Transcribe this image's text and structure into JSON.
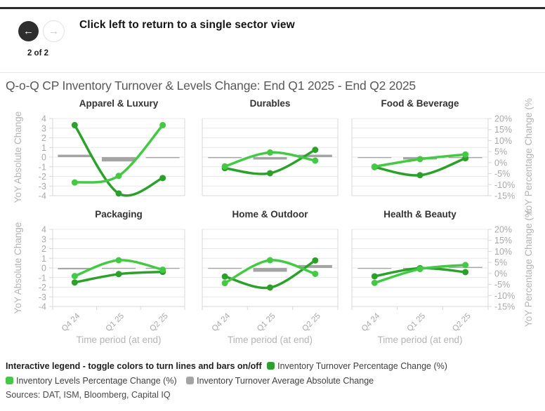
{
  "header": {
    "instruction": "Click left to return to a single sector view",
    "page_indicator": "2 of 2",
    "back_icon": "left-arrow",
    "forward_icon": "right-arrow"
  },
  "title": "Q-o-Q CP Inventory Turnover & Levels Change: End Q1 2025 - End Q2 2025",
  "axes": {
    "left_title": "YoY Absolute Change",
    "right_title": "YoY Percentage Change (%",
    "x_title": "Time period (at end)",
    "categories": [
      "Q4 24",
      "Q1 25",
      "Q2 25"
    ],
    "left_ticks": [
      4,
      3,
      2,
      1,
      0,
      -1,
      -2,
      -3,
      -4
    ],
    "right_ticks": [
      "20%",
      "15%",
      "10%",
      "5%",
      "0%",
      "-5%",
      "-10%",
      "-15%"
    ],
    "left_range": [
      -4,
      4
    ],
    "right_range": [
      -15,
      20
    ]
  },
  "colors": {
    "turnover": "#2ba12b",
    "levels": "#43c943",
    "bars": "#a4a4a4",
    "grid": "#e8e8e8",
    "axis_line": "#d9d9d9",
    "tick_text": "#a9a9a9",
    "axis_title_text": "#b4b4b4"
  },
  "chart_data": [
    {
      "type": "line+bar",
      "title": "Apparel & Luxury",
      "categories": [
        "Q4 24",
        "Q1 25",
        "Q2 25"
      ],
      "series": [
        {
          "name": "Inventory Turnover Percentage Change (%)",
          "kind": "line",
          "axis": "right",
          "values": [
            17,
            -14,
            -7
          ]
        },
        {
          "name": "Inventory Levels Percentage Change (%)",
          "kind": "line",
          "axis": "right",
          "values": [
            -9,
            -6,
            17
          ]
        },
        {
          "name": "Inventory Turnover Average Absolute Change",
          "kind": "bar",
          "axis": "left",
          "values": [
            0.25,
            -0.45,
            -0.1
          ]
        }
      ]
    },
    {
      "type": "line+bar",
      "title": "Durables",
      "categories": [
        "Q4 24",
        "Q1 25",
        "Q2 25"
      ],
      "series": [
        {
          "name": "Inventory Turnover Percentage Change (%)",
          "kind": "line",
          "axis": "right",
          "values": [
            -2.5,
            -4.8,
            5.8
          ]
        },
        {
          "name": "Inventory Levels Percentage Change (%)",
          "kind": "line",
          "axis": "right",
          "values": [
            -1.7,
            4.6,
            0.9
          ]
        },
        {
          "name": "Inventory Turnover Average Absolute Change",
          "kind": "bar",
          "axis": "left",
          "values": [
            -0.1,
            -0.25,
            0.25
          ]
        }
      ]
    },
    {
      "type": "line+bar",
      "title": "Food & Beverage",
      "categories": [
        "Q4 24",
        "Q1 25",
        "Q2 25"
      ],
      "series": [
        {
          "name": "Inventory Turnover Percentage Change (%)",
          "kind": "line",
          "axis": "right",
          "values": [
            -2,
            -5.7,
            2
          ]
        },
        {
          "name": "Inventory Levels Percentage Change (%)",
          "kind": "line",
          "axis": "right",
          "values": [
            -1.8,
            1.6,
            3.7
          ]
        },
        {
          "name": "Inventory Turnover Average Absolute Change",
          "kind": "bar",
          "axis": "left",
          "values": [
            -0.05,
            -0.25,
            -0.1
          ]
        }
      ]
    },
    {
      "type": "line+bar",
      "title": "Packaging",
      "categories": [
        "Q4 24",
        "Q1 25",
        "Q2 25"
      ],
      "series": [
        {
          "name": "Inventory Turnover Percentage Change (%)",
          "kind": "line",
          "axis": "right",
          "values": [
            -4.1,
            -0.3,
            0.7
          ]
        },
        {
          "name": "Inventory Levels Percentage Change (%)",
          "kind": "line",
          "axis": "right",
          "values": [
            -1.2,
            6.0,
            1.7
          ]
        },
        {
          "name": "Inventory Turnover Average Absolute Change",
          "kind": "bar",
          "axis": "left",
          "values": [
            -0.15,
            -0.03,
            -0.03
          ]
        }
      ]
    },
    {
      "type": "line+bar",
      "title": "Home & Outdoor",
      "categories": [
        "Q4 24",
        "Q1 25",
        "Q2 25"
      ],
      "series": [
        {
          "name": "Inventory Turnover Percentage Change (%)",
          "kind": "line",
          "axis": "right",
          "values": [
            -1.4,
            -6.4,
            5.9
          ]
        },
        {
          "name": "Inventory Levels Percentage Change (%)",
          "kind": "line",
          "axis": "right",
          "values": [
            -4.4,
            6.0,
            -0.2
          ]
        },
        {
          "name": "Inventory Turnover Average Absolute Change",
          "kind": "bar",
          "axis": "left",
          "values": [
            -0.03,
            -0.4,
            0.3
          ]
        }
      ]
    },
    {
      "type": "line+bar",
      "title": "Health & Beauty",
      "categories": [
        "Q4 24",
        "Q1 25",
        "Q2 25"
      ],
      "series": [
        {
          "name": "Inventory Turnover Percentage Change (%)",
          "kind": "line",
          "axis": "right",
          "values": [
            -1.3,
            2.4,
            0.6
          ]
        },
        {
          "name": "Inventory Levels Percentage Change (%)",
          "kind": "line",
          "axis": "right",
          "values": [
            -4.3,
            2.0,
            3.8
          ]
        },
        {
          "name": "Inventory Turnover Average Absolute Change",
          "kind": "bar",
          "axis": "left",
          "values": [
            -0.03,
            -0.05,
            0.1
          ]
        }
      ]
    }
  ],
  "legend": {
    "intro": "Interactive legend - toggle colors to turn lines and bars on/off",
    "items": [
      {
        "label": "Inventory Turnover Percentage Change (%)",
        "color": "#2ba12b"
      },
      {
        "label": "Inventory Levels Percentage Change (%)",
        "color": "#43c943"
      },
      {
        "label": "Inventory Turnover Average Absolute Change",
        "color": "#a4a4a4"
      }
    ]
  },
  "sources": "Sources: DAT, ISM, Bloomberg, Capital IQ"
}
